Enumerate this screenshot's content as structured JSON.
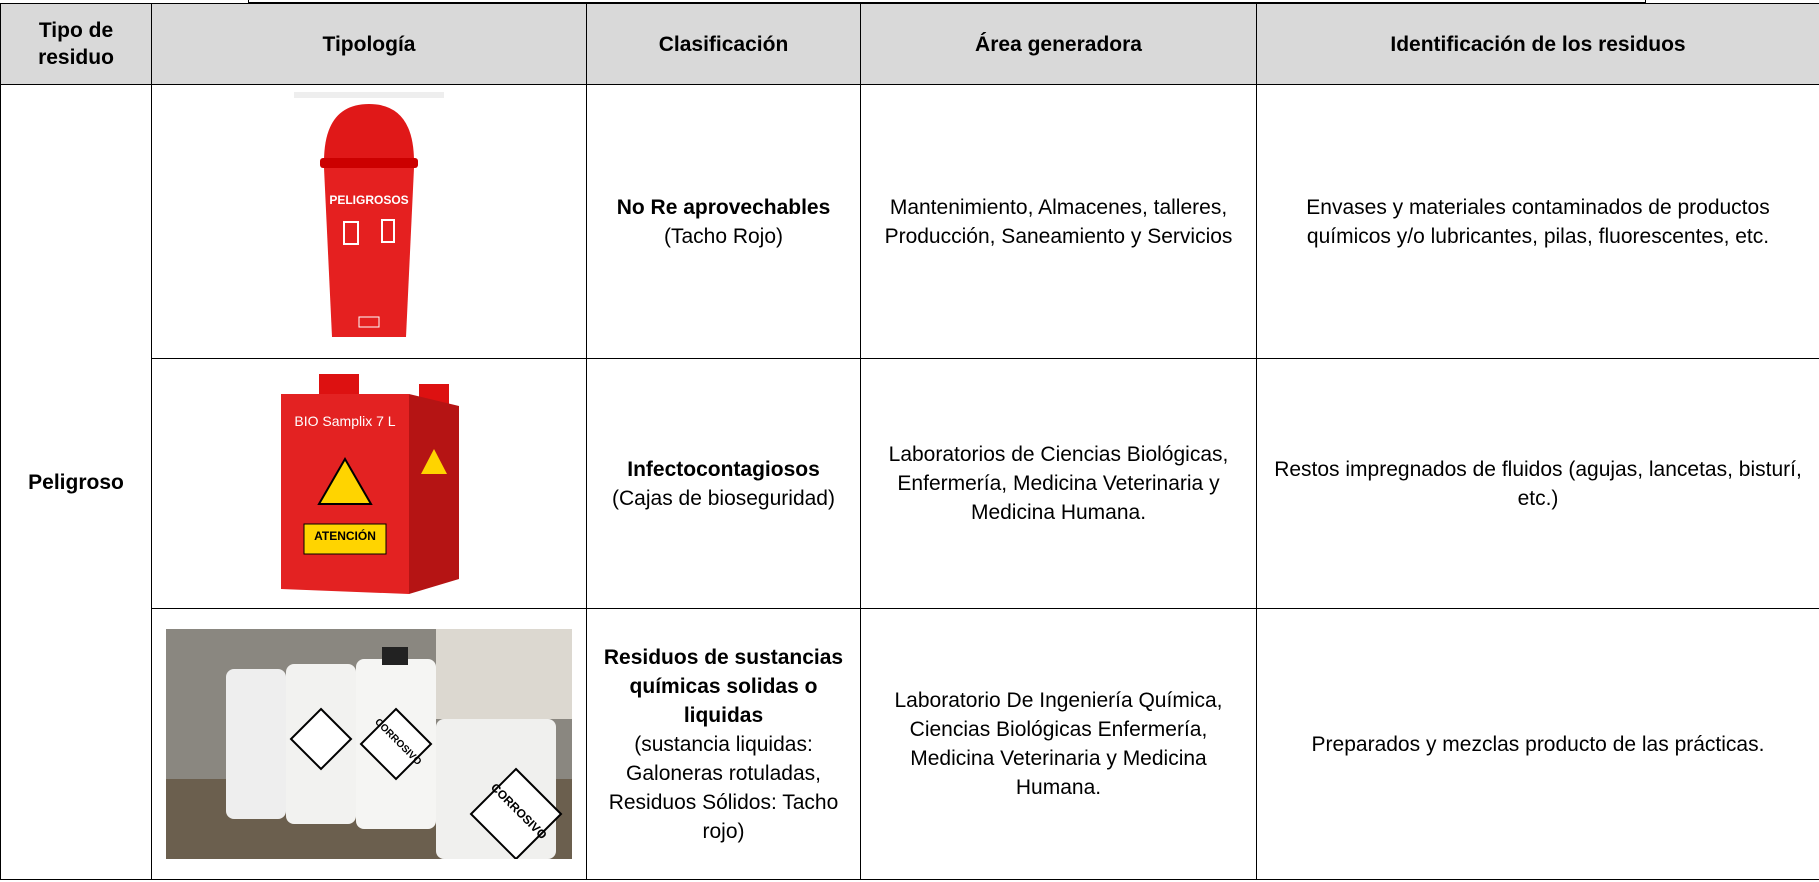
{
  "table": {
    "headers": [
      "Tipo de residuo",
      "Tipología",
      "Clasificación",
      "Área generadora",
      "Identificación de los residuos"
    ],
    "waste_type": "Peligroso",
    "rows": [
      {
        "classification_bold": "No Re aprovechables",
        "classification_note": "(Tacho Rojo)",
        "area": "Mantenimiento, Almacenes, talleres, Producción, Saneamiento y Servicios",
        "identification": "Envases y materiales contaminados de productos químicos y/o lubricantes, pilas, fluorescentes, etc.",
        "image_labels": [
          "PELIGROSOS"
        ]
      },
      {
        "classification_bold": "Infectocontagiosos",
        "classification_note": "(Cajas de bioseguridad)",
        "area": "Laboratorios de Ciencias Biológicas, Enfermería, Medicina Veterinaria y Medicina Humana.",
        "identification": "Restos impregnados de fluidos (agujas, lancetas, bisturí, etc.)",
        "image_labels": [
          "BIO Samplix 7 L",
          "ATENCIÓN"
        ]
      },
      {
        "classification_bold": "Residuos de sustancias químicas solidas o liquidas",
        "classification_note": "(sustancia liquidas: Galoneras rotuladas, Residuos Sólidos: Tacho rojo)",
        "area": "Laboratorio De Ingeniería Química, Ciencias Biológicas Enfermería, Medicina Veterinaria y Medicina Humana.",
        "identification": "Preparados y mezclas producto de las prácticas.",
        "image_labels": [
          "CORROSIVO",
          "CORROSIVO"
        ]
      }
    ]
  }
}
